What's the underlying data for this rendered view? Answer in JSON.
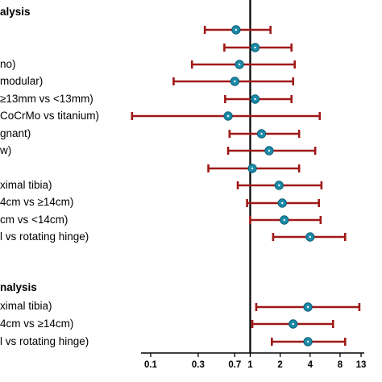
{
  "chart_data": {
    "type": "forest",
    "xscale": "log",
    "xlim": [
      0.08,
      14
    ],
    "reference_line": 1,
    "xticks": [
      {
        "value": 0.1,
        "label": "0.1"
      },
      {
        "value": 0.3,
        "label": "0.3"
      },
      {
        "value": 0.7,
        "label": "0.7"
      },
      {
        "value": 1,
        "label": "1"
      },
      {
        "value": 2,
        "label": "2"
      },
      {
        "value": 4,
        "label": "4"
      },
      {
        "value": 8,
        "label": "8"
      },
      {
        "value": 13,
        "label": "13"
      }
    ],
    "colors": {
      "ci": "#a01818",
      "point": "#1b8aa8",
      "point_edge": "#0e5e73",
      "ref": "#000000"
    },
    "sections": [
      {
        "header": "alysis",
        "rows": [
          {
            "label": "",
            "estimate": 0.72,
            "lower": 0.35,
            "upper": 1.6
          },
          {
            "label": "",
            "estimate": 1.12,
            "lower": 0.55,
            "upper": 2.6
          },
          {
            "label": "no)",
            "estimate": 0.78,
            "lower": 0.26,
            "upper": 2.8
          },
          {
            "label": "modular)",
            "estimate": 0.7,
            "lower": 0.17,
            "upper": 2.7
          },
          {
            "label": "≥13mm vs <13mm)",
            "estimate": 1.12,
            "lower": 0.56,
            "upper": 2.6
          },
          {
            "label": "CoCrMo vs titanium)",
            "estimate": 0.6,
            "lower": 0.065,
            "upper": 5.0
          },
          {
            "label": "gnant)",
            "estimate": 1.3,
            "lower": 0.62,
            "upper": 3.1
          },
          {
            "label": "w)",
            "estimate": 1.55,
            "lower": 0.6,
            "upper": 4.5
          },
          {
            "label": "",
            "estimate": 1.05,
            "lower": 0.38,
            "upper": 3.1
          },
          {
            "label": "ximal tibia)",
            "estimate": 1.95,
            "lower": 0.75,
            "upper": 5.2
          },
          {
            "label": "4cm vs ≥14cm)",
            "estimate": 2.1,
            "lower": 0.93,
            "upper": 4.9
          },
          {
            "label": "cm vs <14cm)",
            "estimate": 2.2,
            "lower": 1.0,
            "upper": 5.1
          },
          {
            "label": "l vs rotating hinge)",
            "estimate": 4.0,
            "lower": 1.7,
            "upper": 9.0
          }
        ]
      },
      {
        "header": "nalysis",
        "rows": [
          {
            "label": "ximal tibia)",
            "estimate": 3.8,
            "lower": 1.15,
            "upper": 12.5
          },
          {
            "label": "4cm vs ≥14cm)",
            "estimate": 2.7,
            "lower": 1.05,
            "upper": 6.8
          },
          {
            "label": "l vs rotating hinge)",
            "estimate": 3.8,
            "lower": 1.65,
            "upper": 9.0
          }
        ]
      }
    ]
  }
}
